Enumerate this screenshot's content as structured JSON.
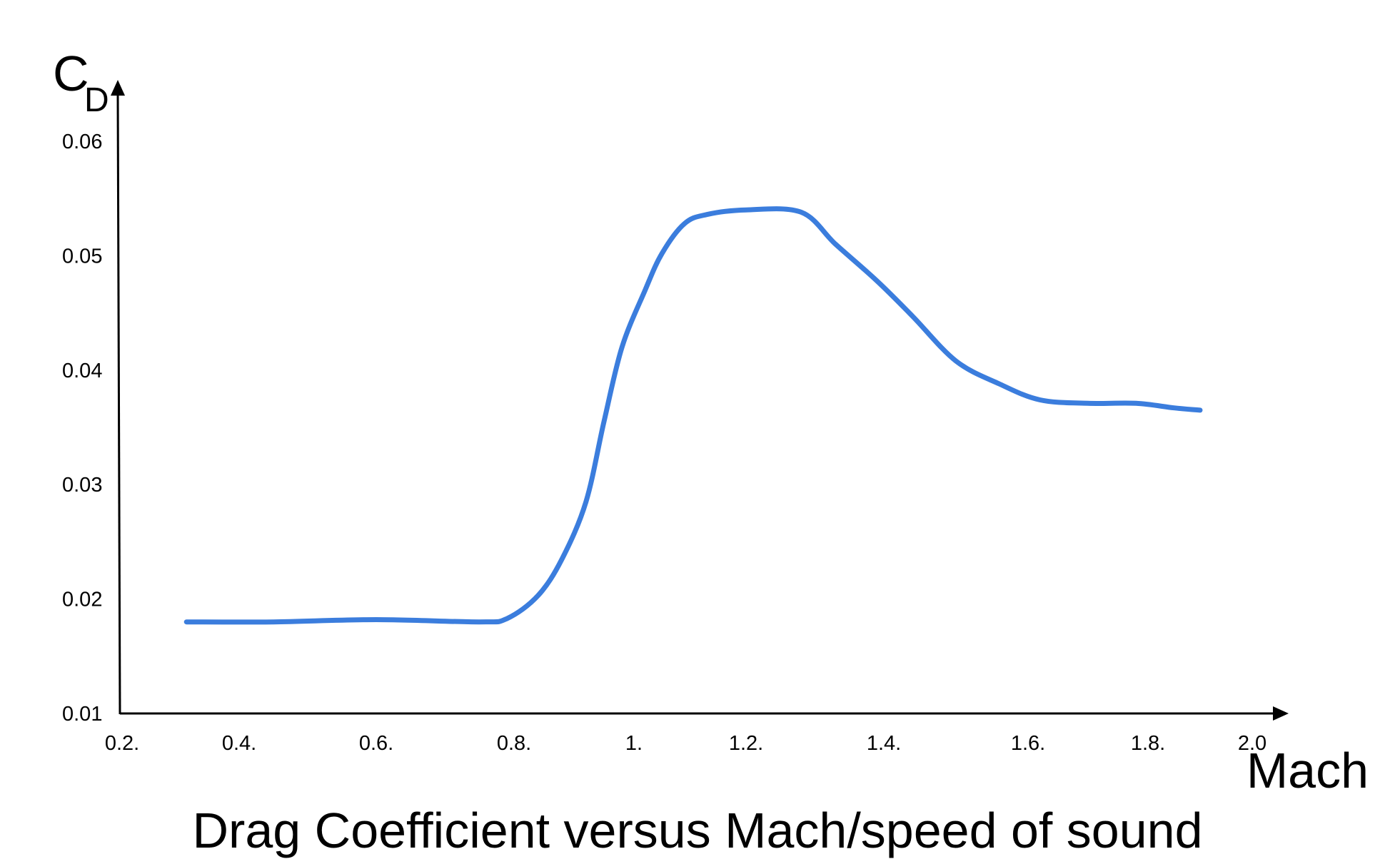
{
  "chart_data": {
    "type": "line",
    "title": "Drag Coefficient versus Mach/speed of sound",
    "xlabel": "Mach",
    "ylabel": {
      "symbol": "C",
      "subscript": "D"
    },
    "x_ticks": [
      "0.2.",
      "0.4.",
      "0.6.",
      "0.8.",
      "1.",
      "1.2.",
      "1.4.",
      "1.6.",
      "1.8.",
      "2.0"
    ],
    "y_ticks": [
      "0.01",
      "0.02",
      "0.03",
      "0.04",
      "0.05",
      "0.06"
    ],
    "ylim": [
      0.01,
      0.06
    ],
    "grid": false,
    "legend": "none",
    "series": [
      {
        "color": "#3b7ddd",
        "x": [
          0.31,
          0.45,
          0.6,
          0.75,
          0.79,
          0.84,
          0.88,
          0.92,
          0.95,
          0.98,
          1.02,
          1.05,
          1.09,
          1.13,
          1.2,
          1.28,
          1.33,
          1.39,
          1.44,
          1.5,
          1.56,
          1.62,
          1.7,
          1.78,
          1.85,
          1.9
        ],
        "y": [
          0.018,
          0.018,
          0.0182,
          0.018,
          0.0183,
          0.0203,
          0.0235,
          0.0285,
          0.0355,
          0.042,
          0.047,
          0.0502,
          0.0528,
          0.0536,
          0.054,
          0.0538,
          0.051,
          0.0478,
          0.0447,
          0.0408,
          0.0388,
          0.0374,
          0.0371,
          0.0371,
          0.0367,
          0.0365
        ]
      }
    ]
  }
}
